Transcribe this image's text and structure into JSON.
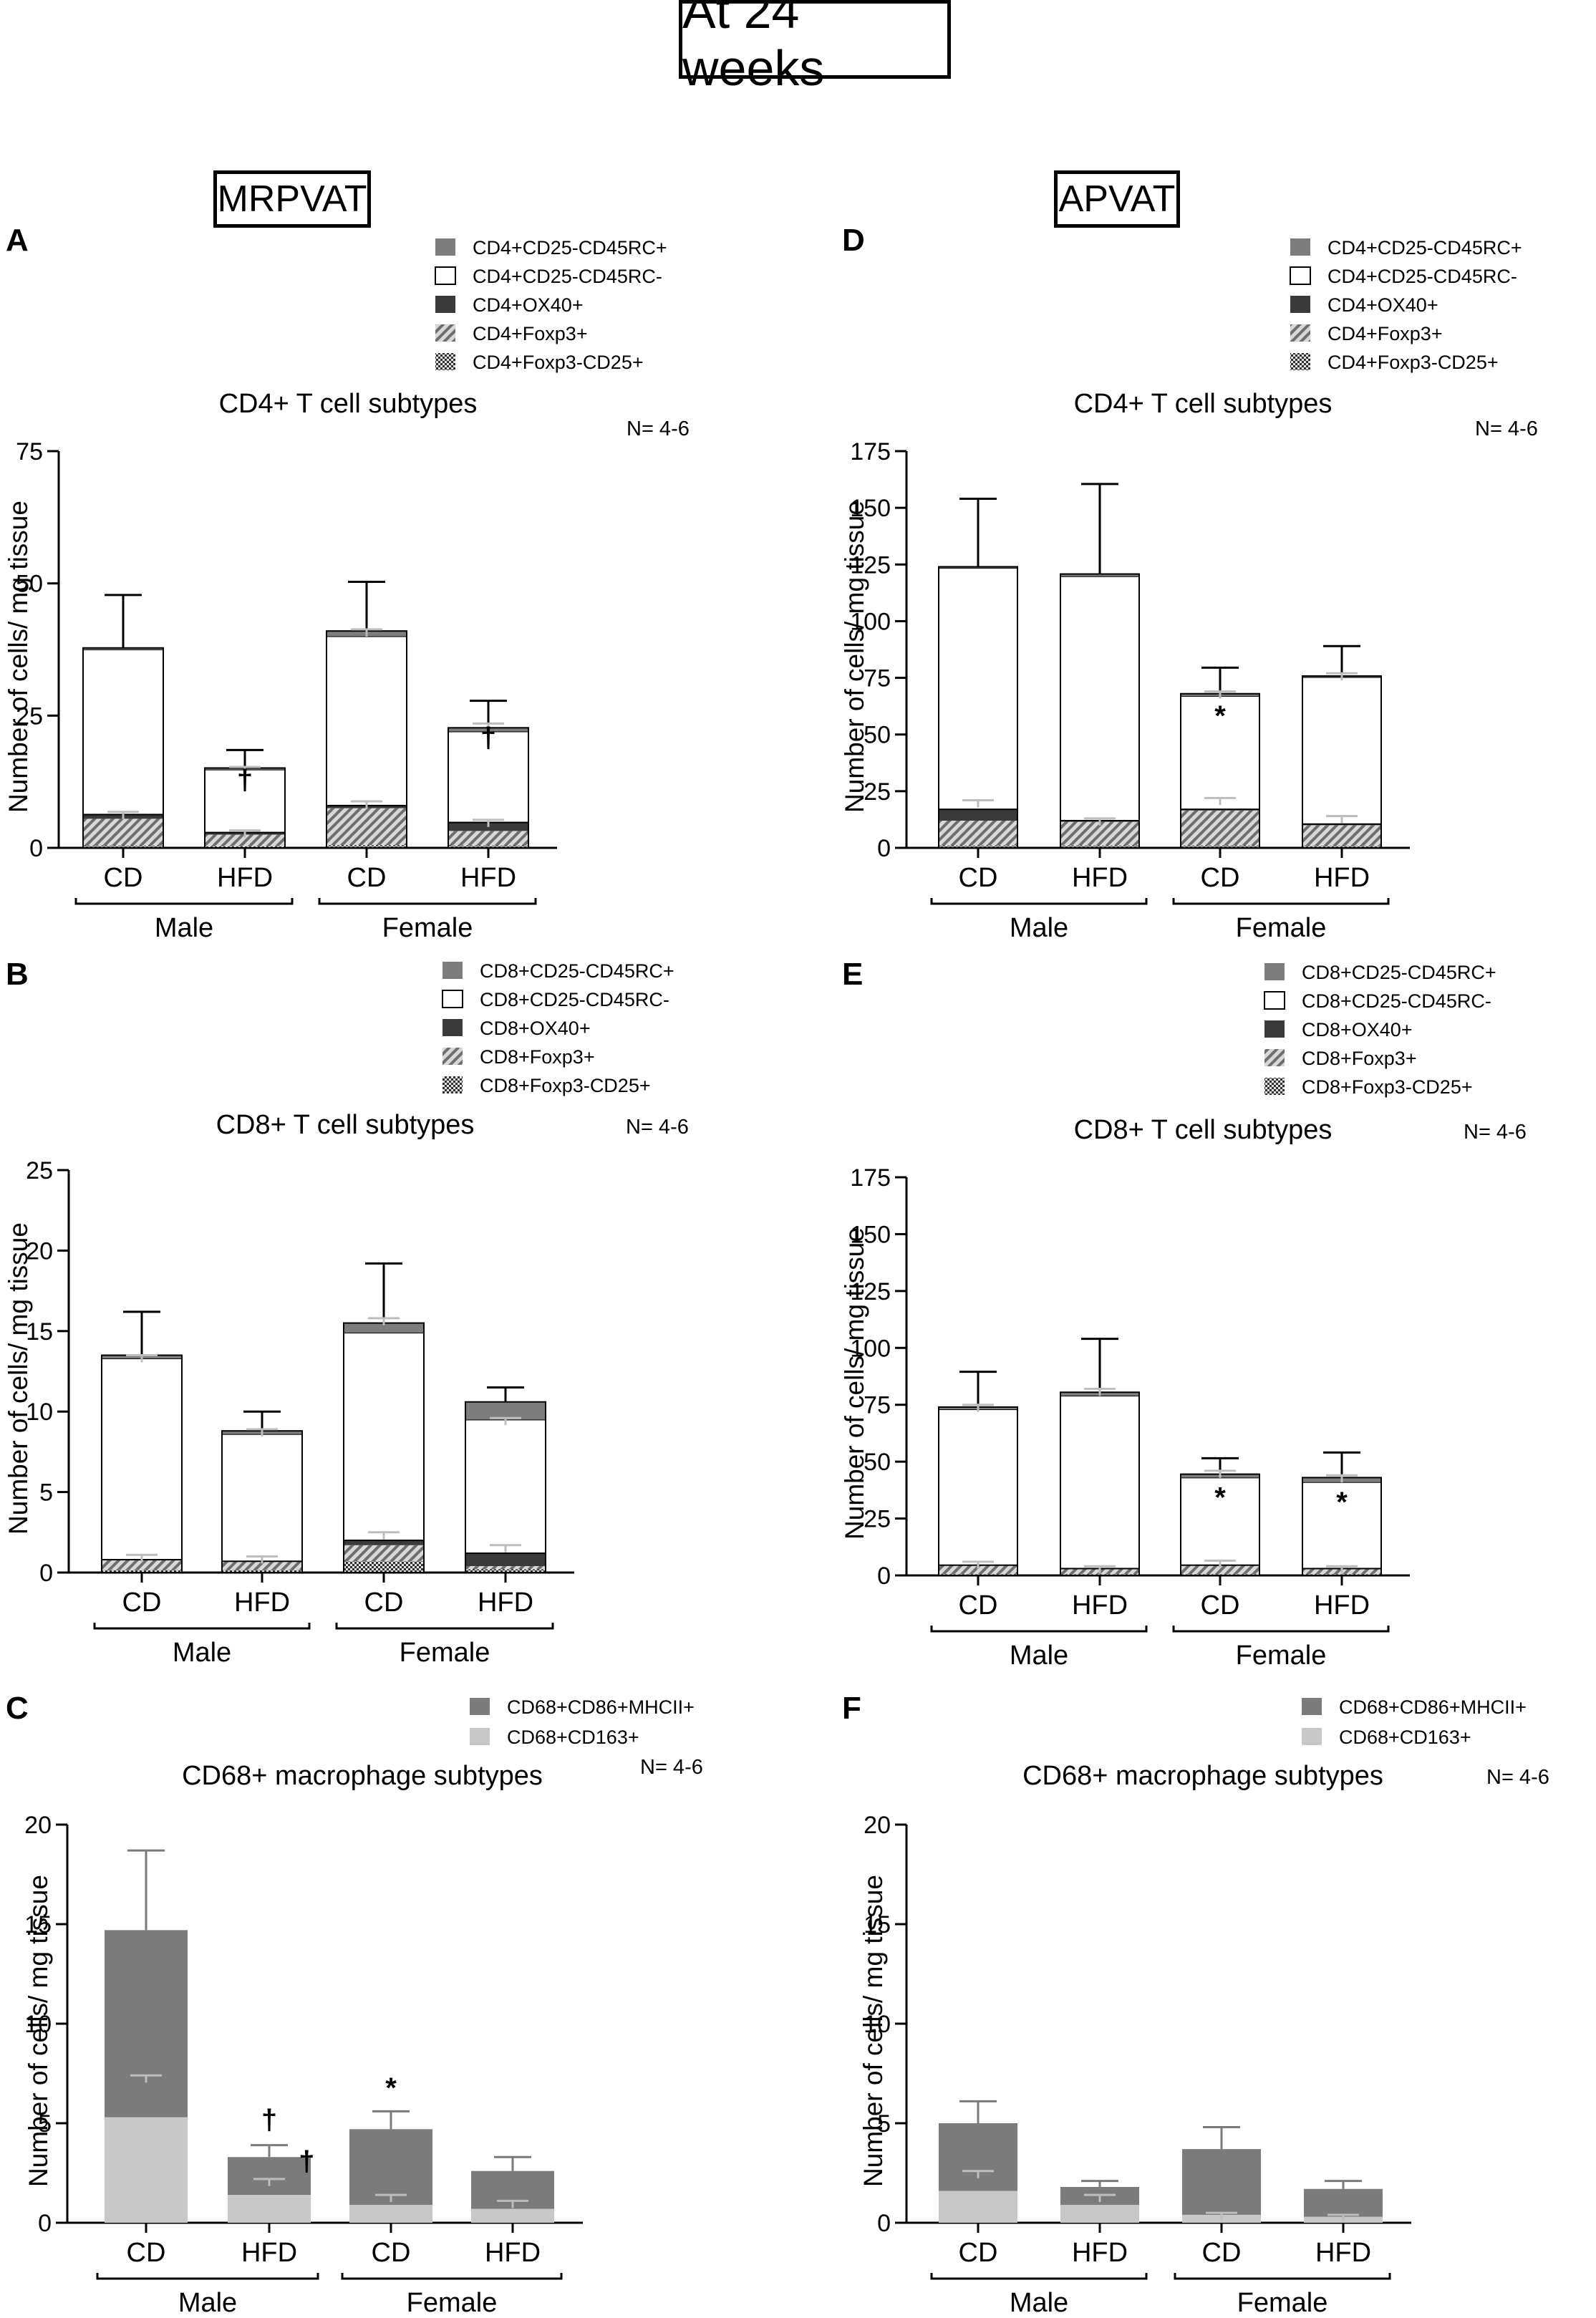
{
  "main_title": "At 24 weeks",
  "columns": {
    "left": "MRPVAT",
    "right": "APVAT"
  },
  "colors": {
    "act": "#7d7d7d",
    "naive": "#ffffff",
    "ox40": "#3a3a3a",
    "m1": "#7b7b7b",
    "m2": "#c8c8c8",
    "err": "#bdbdbd",
    "axis": "#000000"
  },
  "chart_data": [
    {
      "id": "A",
      "type": "bar",
      "stacked": true,
      "title": "CD4+ T cell subtypes",
      "n_label": "N= 4-6",
      "ylabel": "Number of cells/ mg tissue",
      "xlabel": "",
      "ylim": [
        0,
        75
      ],
      "yticks": [
        0,
        25,
        50,
        75
      ],
      "categories": [
        "CD",
        "HFD",
        "CD",
        "HFD"
      ],
      "groups": [
        "Male",
        "Female"
      ],
      "legend": [
        "CD4+CD25-CD45RC+",
        "CD4+CD25-CD45RC-",
        "CD4+OX40+",
        "CD4+Foxp3+",
        "CD4+Foxp3-CD25+"
      ],
      "series": [
        {
          "name": "CD4+Foxp3-CD25+",
          "style": "fine",
          "values": [
            0.4,
            0.3,
            0.5,
            0.4
          ]
        },
        {
          "name": "CD4+Foxp3+",
          "style": "hatch",
          "values": [
            5.1,
            2.2,
            7.0,
            2.8
          ]
        },
        {
          "name": "CD4+OX40+",
          "style": "ox40",
          "values": [
            0.8,
            0.4,
            0.5,
            1.6
          ]
        },
        {
          "name": "CD4+CD25-CD45RC-",
          "style": "naive",
          "values": [
            31.2,
            11.9,
            32.0,
            17.2
          ]
        },
        {
          "name": "CD4+CD25-CD45RC+",
          "style": "act",
          "values": [
            0.3,
            0.3,
            1.0,
            0.7
          ]
        }
      ],
      "error_bars": [
        {
          "value": 47.8,
          "color": "axis",
          "ticks": [
            6.8
          ]
        },
        {
          "value": 18.5,
          "color": "axis",
          "ticks": [
            15.3,
            3.3
          ]
        },
        {
          "value": 50.3,
          "color": "axis",
          "ticks": [
            41.3,
            8.8
          ]
        },
        {
          "value": 27.8,
          "color": "axis",
          "ticks": [
            23.5,
            5.3
          ]
        }
      ],
      "annotations": [
        {
          "bar": 1,
          "y": 11,
          "text": "†"
        },
        {
          "bar": 3,
          "y": 19,
          "text": "†"
        }
      ]
    },
    {
      "id": "D",
      "type": "bar",
      "stacked": true,
      "title": "CD4+ T cell subtypes",
      "n_label": "N= 4-6",
      "ylabel": "Number of cells/ mg tissue",
      "xlabel": "",
      "ylim": [
        0,
        175
      ],
      "yticks": [
        0,
        25,
        50,
        75,
        100,
        125,
        150,
        175
      ],
      "categories": [
        "CD",
        "HFD",
        "CD",
        "HFD"
      ],
      "groups": [
        "Male",
        "Female"
      ],
      "legend": [
        "CD4+CD25-CD45RC+",
        "CD4+CD25-CD45RC-",
        "CD4+OX40+",
        "CD4+Foxp3+",
        "CD4+Foxp3-CD25+"
      ],
      "series": [
        {
          "name": "CD4+Foxp3-CD25+",
          "style": "fine",
          "values": [
            1.0,
            1.0,
            1.0,
            0.8
          ]
        },
        {
          "name": "CD4+Foxp3+",
          "style": "hatch",
          "values": [
            11.0,
            10.5,
            15.5,
            9.2
          ]
        },
        {
          "name": "CD4+OX40+",
          "style": "ox40",
          "values": [
            5.0,
            0.5,
            0.5,
            0.5
          ]
        },
        {
          "name": "CD4+CD25-CD45RC-",
          "style": "naive",
          "values": [
            106.5,
            107.8,
            50.0,
            64.8
          ]
        },
        {
          "name": "CD4+CD25-CD45RC+",
          "style": "act",
          "values": [
            0.5,
            1.0,
            1.0,
            0.5
          ]
        }
      ],
      "error_bars": [
        {
          "value": 154.0,
          "color": "axis",
          "ticks": [
            21.0
          ]
        },
        {
          "value": 160.5,
          "color": "axis",
          "ticks": [
            13.0
          ]
        },
        {
          "value": 79.5,
          "color": "axis",
          "ticks": [
            69.0,
            22.0
          ]
        },
        {
          "value": 89.0,
          "color": "axis",
          "ticks": [
            77.0,
            14.0
          ]
        }
      ],
      "annotations": [
        {
          "bar": 2,
          "y": 54,
          "text": "*"
        }
      ]
    },
    {
      "id": "B",
      "type": "bar",
      "stacked": true,
      "title": "CD8+ T cell subtypes",
      "n_label": "N= 4-6",
      "ylabel": "Number of cells/ mg tissue",
      "xlabel": "",
      "ylim": [
        0,
        25
      ],
      "yticks": [
        0,
        5,
        10,
        15,
        20,
        25
      ],
      "categories": [
        "CD",
        "HFD",
        "CD",
        "HFD"
      ],
      "groups": [
        "Male",
        "Female"
      ],
      "legend": [
        "CD8+CD25-CD45RC+",
        "CD8+CD25-CD45RC-",
        "CD8+OX40+",
        "CD8+Foxp3+",
        "CD8+Foxp3-CD25+"
      ],
      "series": [
        {
          "name": "CD8+Foxp3-CD25+",
          "style": "fine",
          "values": [
            0.15,
            0.15,
            0.7,
            0.2
          ]
        },
        {
          "name": "CD8+Foxp3+",
          "style": "hatch",
          "values": [
            0.65,
            0.55,
            1.0,
            0.2
          ]
        },
        {
          "name": "CD8+OX40+",
          "style": "ox40",
          "values": [
            0.0,
            0.0,
            0.3,
            0.8
          ]
        },
        {
          "name": "CD8+CD25-CD45RC-",
          "style": "naive",
          "values": [
            12.5,
            7.9,
            12.9,
            8.3
          ]
        },
        {
          "name": "CD8+CD25-CD45RC+",
          "style": "act",
          "values": [
            0.2,
            0.2,
            0.6,
            1.1
          ]
        }
      ],
      "error_bars": [
        {
          "value": 16.2,
          "color": "axis",
          "ticks": [
            13.5,
            1.1
          ]
        },
        {
          "value": 10.0,
          "color": "axis",
          "ticks": [
            8.9,
            1.0
          ]
        },
        {
          "value": 19.2,
          "color": "axis",
          "ticks": [
            15.8,
            2.5
          ]
        },
        {
          "value": 11.5,
          "color": "axis",
          "ticks": [
            9.6,
            1.7
          ]
        }
      ],
      "annotations": []
    },
    {
      "id": "E",
      "type": "bar",
      "stacked": true,
      "title": "CD8+ T cell subtypes",
      "n_label": "N= 4-6",
      "ylabel": "Number of cells/ mg tissue",
      "xlabel": "",
      "ylim": [
        0,
        175
      ],
      "yticks": [
        0,
        25,
        50,
        75,
        100,
        125,
        150,
        175
      ],
      "categories": [
        "CD",
        "HFD",
        "CD",
        "HFD"
      ],
      "groups": [
        "Male",
        "Female"
      ],
      "legend": [
        "CD8+CD25-CD45RC+",
        "CD8+CD25-CD45RC-",
        "CD8+OX40+",
        "CD8+Foxp3+",
        "CD8+Foxp3-CD25+"
      ],
      "series": [
        {
          "name": "CD8+Foxp3-CD25+",
          "style": "fine",
          "values": [
            0.5,
            0.5,
            0.5,
            0.5
          ]
        },
        {
          "name": "CD8+Foxp3+",
          "style": "hatch",
          "values": [
            4.0,
            2.5,
            4.0,
            2.5
          ]
        },
        {
          "name": "CD8+OX40+",
          "style": "ox40",
          "values": [
            0.0,
            0.0,
            0.0,
            0.0
          ]
        },
        {
          "name": "CD8+CD25-CD45RC-",
          "style": "naive",
          "values": [
            68.5,
            76.0,
            38.5,
            38.0
          ]
        },
        {
          "name": "CD8+CD25-CD45RC+",
          "style": "act",
          "values": [
            1.0,
            1.5,
            1.5,
            2.0
          ]
        }
      ],
      "error_bars": [
        {
          "value": 89.5,
          "color": "axis",
          "ticks": [
            75.0,
            6.0
          ]
        },
        {
          "value": 104.0,
          "color": "axis",
          "ticks": [
            82.0,
            4.0
          ]
        },
        {
          "value": 51.5,
          "color": "axis",
          "ticks": [
            46.0,
            6.5
          ]
        },
        {
          "value": 54.0,
          "color": "axis",
          "ticks": [
            44.0,
            4.0
          ]
        }
      ],
      "annotations": [
        {
          "bar": 2,
          "y": 30,
          "text": "*"
        },
        {
          "bar": 3,
          "y": 28,
          "text": "*"
        }
      ]
    },
    {
      "id": "C",
      "type": "bar",
      "stacked": true,
      "title": "CD68+ macrophage subtypes",
      "n_label": "N= 4-6",
      "ylabel": "Number of cells/ mg tissue",
      "xlabel": "",
      "ylim": [
        0,
        20
      ],
      "yticks": [
        0,
        5,
        10,
        15,
        20
      ],
      "categories": [
        "CD",
        "HFD",
        "CD",
        "HFD"
      ],
      "groups": [
        "Male",
        "Female"
      ],
      "legend": [
        "CD68+CD86+MHCII+",
        "CD68+CD163+"
      ],
      "series": [
        {
          "name": "CD68+CD163+",
          "style": "m2",
          "values": [
            5.3,
            1.4,
            0.9,
            0.7
          ]
        },
        {
          "name": "CD68+CD86+MHCII+",
          "style": "m1",
          "values": [
            9.4,
            1.9,
            3.8,
            1.9
          ]
        }
      ],
      "error_bars": [
        {
          "value": 18.7,
          "color": "m1",
          "ticks": [
            7.4
          ]
        },
        {
          "value": 3.9,
          "color": "m1",
          "ticks": [
            2.2
          ]
        },
        {
          "value": 5.6,
          "color": "m1",
          "ticks": [
            1.4
          ]
        },
        {
          "value": 3.3,
          "color": "m1",
          "ticks": [
            1.1
          ]
        }
      ],
      "annotations": [
        {
          "bar": 1,
          "y": 4.7,
          "text": "†"
        },
        {
          "bar": 1,
          "y": 2.6,
          "text": "†",
          "dx": 0.45
        },
        {
          "bar": 2,
          "y": 6.3,
          "text": "*"
        }
      ]
    },
    {
      "id": "F",
      "type": "bar",
      "stacked": true,
      "title": "CD68+ macrophage subtypes",
      "n_label": "N= 4-6",
      "ylabel": "Number of cells/ mg tissue",
      "xlabel": "",
      "ylim": [
        0,
        20
      ],
      "yticks": [
        0,
        5,
        10,
        15,
        20
      ],
      "categories": [
        "CD",
        "HFD",
        "CD",
        "HFD"
      ],
      "groups": [
        "Male",
        "Female"
      ],
      "legend": [
        "CD68+CD86+MHCII+",
        "CD68+CD163+"
      ],
      "series": [
        {
          "name": "CD68+CD163+",
          "style": "m2",
          "values": [
            1.6,
            0.9,
            0.4,
            0.3
          ]
        },
        {
          "name": "CD68+CD86+MHCII+",
          "style": "m1",
          "values": [
            3.4,
            0.9,
            3.3,
            1.4
          ]
        }
      ],
      "error_bars": [
        {
          "value": 6.1,
          "color": "m1",
          "ticks": [
            2.6
          ]
        },
        {
          "value": 2.1,
          "color": "m1",
          "ticks": [
            1.4
          ]
        },
        {
          "value": 4.8,
          "color": "m1",
          "ticks": [
            0.5
          ]
        },
        {
          "value": 2.1,
          "color": "m1",
          "ticks": [
            0.4
          ]
        }
      ],
      "annotations": []
    }
  ]
}
